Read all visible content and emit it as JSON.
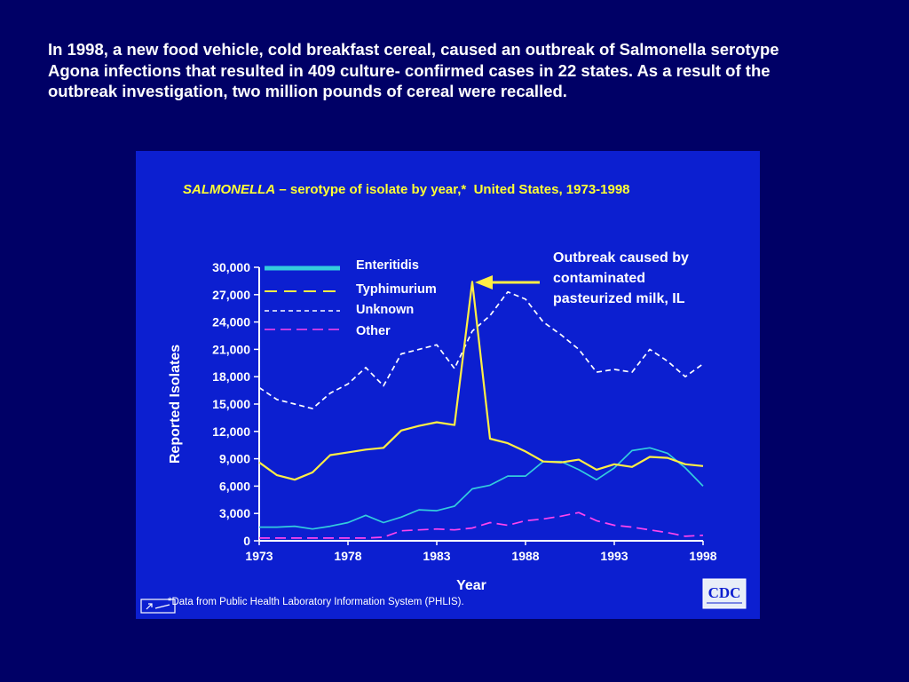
{
  "intro_text": "In 1998, a new food vehicle, cold breakfast cereal, caused an outbreak of Salmonella serotype Agona infections that resulted in 409 culture- confirmed cases in 22 states. As a result of the outbreak investigation, two million pounds of cereal were recalled.",
  "chart_data": {
    "type": "line",
    "title_italic": "SALMONELLA",
    "title_rest": " – serotype of isolate by year,*  United States, 1973-1998",
    "xlabel": "Year",
    "ylabel": "Reported Isolates",
    "xlim": [
      1973,
      1998
    ],
    "ylim": [
      0,
      30000
    ],
    "x_ticks": [
      1973,
      1978,
      1983,
      1988,
      1993,
      1998
    ],
    "y_ticks": [
      0,
      3000,
      6000,
      9000,
      12000,
      15000,
      18000,
      21000,
      24000,
      27000,
      30000
    ],
    "y_tick_labels": [
      "0",
      "3,000",
      "6,000",
      "9,000",
      "12,000",
      "15,000",
      "18,000",
      "21,000",
      "24,000",
      "27,000",
      "30,000"
    ],
    "x": [
      1973,
      1974,
      1975,
      1976,
      1977,
      1978,
      1979,
      1980,
      1981,
      1982,
      1983,
      1984,
      1985,
      1986,
      1987,
      1988,
      1989,
      1990,
      1991,
      1992,
      1993,
      1994,
      1995,
      1996,
      1997,
      1998
    ],
    "series": [
      {
        "name": "Enteritidis",
        "color": "#33ccdd",
        "style": "solid",
        "values": [
          1500,
          1500,
          1600,
          1300,
          1600,
          2000,
          2800,
          2000,
          2600,
          3400,
          3300,
          3800,
          5700,
          6100,
          7100,
          7100,
          8700,
          8700,
          7800,
          6700,
          8000,
          9900,
          10200,
          9600,
          8000,
          6000
        ]
      },
      {
        "name": "Typhimurium",
        "color": "#ffee44",
        "style": "solid",
        "values": [
          8600,
          7200,
          6700,
          7500,
          9400,
          9700,
          10000,
          10200,
          12100,
          12600,
          13000,
          12700,
          28400,
          11200,
          10700,
          9800,
          8700,
          8600,
          8900,
          7800,
          8400,
          8100,
          9200,
          9100,
          8400,
          8200
        ]
      },
      {
        "name": "Unknown",
        "color": "#ffffff",
        "style": "dashed",
        "values": [
          16800,
          15500,
          15000,
          14500,
          16200,
          17200,
          19000,
          17000,
          20500,
          21000,
          21500,
          18900,
          23000,
          24700,
          27300,
          26500,
          24000,
          22600,
          21000,
          18500,
          18800,
          18500,
          21000,
          19700,
          18000,
          19400
        ]
      },
      {
        "name": "Other",
        "color": "#ff44ee",
        "style": "dashed",
        "values": [
          300,
          300,
          300,
          300,
          300,
          300,
          300,
          400,
          1100,
          1200,
          1300,
          1200,
          1400,
          2000,
          1700,
          2200,
          2400,
          2700,
          3100,
          2200,
          1700,
          1500,
          1200,
          900,
          500,
          600
        ]
      }
    ],
    "annotation": {
      "lines": [
        "Outbreak caused by",
        "contaminated",
        "pasteurized milk, IL"
      ],
      "points_to_x": 1985,
      "points_to_y": 28400,
      "arrow_color": "#ffee44"
    },
    "footnote": "*Data from Public Health Laboratory Information System (PHLIS).",
    "logo_text": "CDC",
    "grid": false,
    "legend_placement": "top-left"
  }
}
